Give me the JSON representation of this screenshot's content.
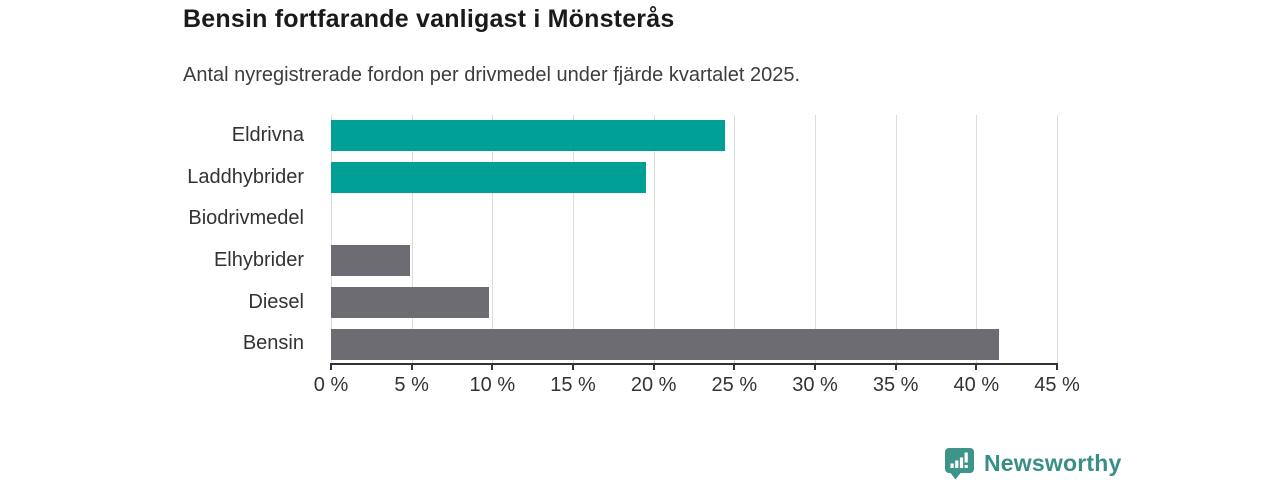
{
  "header": {
    "title": "Bensin fortfarande vanligast i Mönsterås",
    "subtitle": "Antal nyregistrerade fordon per drivmedel under fjärde kvartalet 2025."
  },
  "chart_data": {
    "type": "bar",
    "orientation": "horizontal",
    "title": "Bensin fortfarande vanligast i Mönsterås",
    "subtitle": "Antal nyregistrerade fordon per drivmedel under fjärde kvartalet 2025.",
    "categories": [
      "Eldrivna",
      "Laddhybrider",
      "Biodrivmedel",
      "Elhybrider",
      "Diesel",
      "Bensin"
    ],
    "values": [
      24.4,
      19.5,
      0,
      4.9,
      9.8,
      41.4
    ],
    "unit": "%",
    "bar_colors": [
      "#00a096",
      "#00a096",
      "#6e6c73",
      "#6e6c73",
      "#6e6c73",
      "#6e6c73"
    ],
    "xlim": [
      0,
      45
    ],
    "x_tick_values": [
      0,
      5,
      10,
      15,
      20,
      25,
      30,
      35,
      40,
      45
    ],
    "x_ticks": [
      "0 %",
      "5 %",
      "10 %",
      "15 %",
      "20 %",
      "25 %",
      "30 %",
      "35 %",
      "40 %",
      "45 %"
    ],
    "xlabel": "",
    "ylabel": "",
    "grid": "vertical",
    "legend": "none",
    "colors": {
      "highlight": "#00a096",
      "default": "#6e6c73",
      "gridline": "#dcdcdc",
      "axis": "#333333",
      "label": "#333333"
    }
  },
  "footer": {
    "brand": "Newsworthy",
    "brand_color": "#398f85",
    "icon": "newsworthy-chart-bubble-icon"
  }
}
